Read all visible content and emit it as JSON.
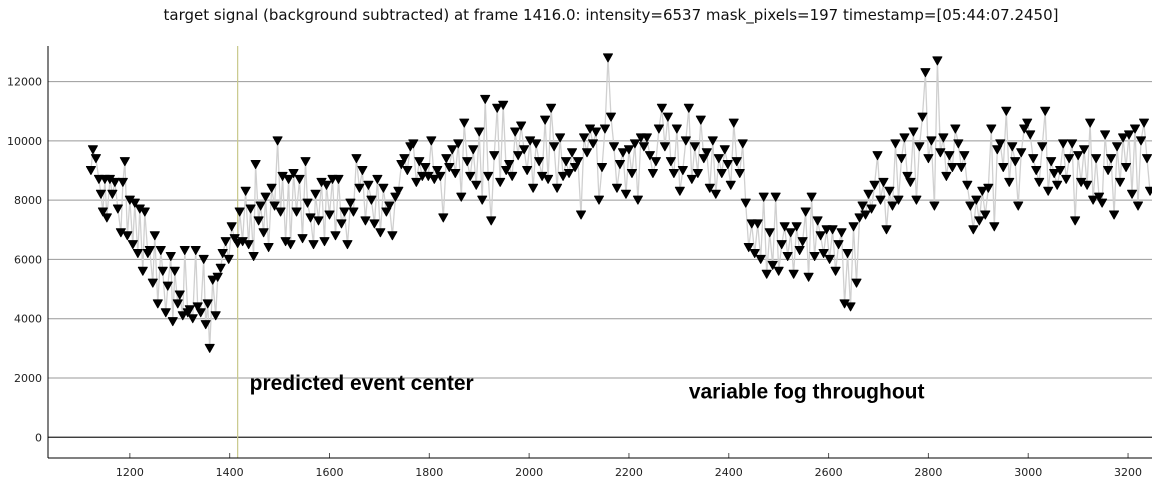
{
  "chart_data": {
    "type": "line",
    "title": "target signal (background subtracted) at frame 1416.0: intensity=6537 mask_pixels=197 timestamp=[05:44:07.2450]",
    "xlabel": "",
    "ylabel": "",
    "xlim": [
      1036,
      3248
    ],
    "ylim": [
      -700,
      13200
    ],
    "xticks": [
      1200,
      1400,
      1600,
      1800,
      2000,
      2200,
      2400,
      2600,
      2800,
      3000,
      3200
    ],
    "yticks": [
      0,
      2000,
      4000,
      6000,
      8000,
      10000,
      12000
    ],
    "grid": "horizontal",
    "marker": "down-triangle",
    "marker_color": "#000000",
    "line_color": "#d0d0d0",
    "event_line": {
      "x": 1416,
      "color": "#c8c88a"
    },
    "annotations": [
      {
        "text": "predicted event center",
        "x": 1440,
        "y": 1600
      },
      {
        "text": "variable fog throughout",
        "x": 2320,
        "y": 1300
      }
    ],
    "points": [
      [
        1122,
        9000
      ],
      [
        1126,
        9700
      ],
      [
        1132,
        9400
      ],
      [
        1138,
        8700
      ],
      [
        1142,
        8200
      ],
      [
        1146,
        7600
      ],
      [
        1150,
        8700
      ],
      [
        1154,
        7400
      ],
      [
        1160,
        8700
      ],
      [
        1165,
        8200
      ],
      [
        1170,
        8600
      ],
      [
        1176,
        7700
      ],
      [
        1182,
        6900
      ],
      [
        1186,
        8600
      ],
      [
        1190,
        9300
      ],
      [
        1195,
        6800
      ],
      [
        1200,
        8000
      ],
      [
        1206,
        6500
      ],
      [
        1210,
        7900
      ],
      [
        1216,
        6200
      ],
      [
        1220,
        7700
      ],
      [
        1226,
        5600
      ],
      [
        1230,
        7600
      ],
      [
        1236,
        6200
      ],
      [
        1240,
        6300
      ],
      [
        1246,
        5200
      ],
      [
        1250,
        6800
      ],
      [
        1256,
        4500
      ],
      [
        1262,
        6300
      ],
      [
        1266,
        5600
      ],
      [
        1272,
        4200
      ],
      [
        1276,
        5100
      ],
      [
        1282,
        6100
      ],
      [
        1286,
        3900
      ],
      [
        1290,
        5600
      ],
      [
        1296,
        4500
      ],
      [
        1300,
        4800
      ],
      [
        1306,
        4100
      ],
      [
        1310,
        6300
      ],
      [
        1316,
        4200
      ],
      [
        1320,
        4300
      ],
      [
        1326,
        4000
      ],
      [
        1332,
        6300
      ],
      [
        1336,
        4400
      ],
      [
        1342,
        4200
      ],
      [
        1348,
        6000
      ],
      [
        1352,
        3800
      ],
      [
        1356,
        4500
      ],
      [
        1360,
        3000
      ],
      [
        1366,
        5300
      ],
      [
        1372,
        4100
      ],
      [
        1376,
        5400
      ],
      [
        1382,
        5700
      ],
      [
        1386,
        6200
      ],
      [
        1392,
        6600
      ],
      [
        1398,
        6000
      ],
      [
        1404,
        7100
      ],
      [
        1410,
        6700
      ],
      [
        1416,
        6537
      ],
      [
        1420,
        7600
      ],
      [
        1426,
        6600
      ],
      [
        1432,
        8300
      ],
      [
        1438,
        6500
      ],
      [
        1442,
        7700
      ],
      [
        1448,
        6100
      ],
      [
        1452,
        9200
      ],
      [
        1458,
        7300
      ],
      [
        1462,
        7800
      ],
      [
        1468,
        6900
      ],
      [
        1472,
        8100
      ],
      [
        1478,
        6400
      ],
      [
        1484,
        8400
      ],
      [
        1490,
        7800
      ],
      [
        1496,
        10000
      ],
      [
        1502,
        7600
      ],
      [
        1506,
        8800
      ],
      [
        1512,
        6600
      ],
      [
        1518,
        8700
      ],
      [
        1522,
        6500
      ],
      [
        1528,
        8900
      ],
      [
        1534,
        7600
      ],
      [
        1540,
        8700
      ],
      [
        1546,
        6700
      ],
      [
        1552,
        9300
      ],
      [
        1556,
        7900
      ],
      [
        1562,
        7400
      ],
      [
        1568,
        6500
      ],
      [
        1572,
        8200
      ],
      [
        1578,
        7300
      ],
      [
        1584,
        8600
      ],
      [
        1590,
        6600
      ],
      [
        1594,
        8500
      ],
      [
        1600,
        7500
      ],
      [
        1606,
        8700
      ],
      [
        1612,
        6800
      ],
      [
        1618,
        8700
      ],
      [
        1624,
        7200
      ],
      [
        1630,
        7600
      ],
      [
        1636,
        6500
      ],
      [
        1642,
        7900
      ],
      [
        1648,
        7600
      ],
      [
        1654,
        9400
      ],
      [
        1660,
        8400
      ],
      [
        1666,
        9000
      ],
      [
        1672,
        7300
      ],
      [
        1678,
        8500
      ],
      [
        1684,
        8000
      ],
      [
        1690,
        7200
      ],
      [
        1696,
        8700
      ],
      [
        1702,
        6900
      ],
      [
        1708,
        8400
      ],
      [
        1714,
        7600
      ],
      [
        1720,
        7800
      ],
      [
        1726,
        6800
      ],
      [
        1732,
        8100
      ],
      [
        1738,
        8300
      ],
      [
        1744,
        9200
      ],
      [
        1750,
        9400
      ],
      [
        1756,
        9000
      ],
      [
        1762,
        9800
      ],
      [
        1768,
        9900
      ],
      [
        1774,
        8600
      ],
      [
        1780,
        9300
      ],
      [
        1786,
        8800
      ],
      [
        1792,
        9100
      ],
      [
        1798,
        8800
      ],
      [
        1804,
        10000
      ],
      [
        1810,
        8700
      ],
      [
        1816,
        9000
      ],
      [
        1822,
        8800
      ],
      [
        1828,
        7400
      ],
      [
        1834,
        9400
      ],
      [
        1840,
        9100
      ],
      [
        1846,
        9700
      ],
      [
        1852,
        8900
      ],
      [
        1858,
        9900
      ],
      [
        1864,
        8100
      ],
      [
        1870,
        10600
      ],
      [
        1876,
        9300
      ],
      [
        1882,
        8800
      ],
      [
        1888,
        9700
      ],
      [
        1894,
        8500
      ],
      [
        1900,
        10300
      ],
      [
        1906,
        8000
      ],
      [
        1912,
        11400
      ],
      [
        1918,
        8800
      ],
      [
        1924,
        7300
      ],
      [
        1930,
        9500
      ],
      [
        1936,
        11100
      ],
      [
        1942,
        8600
      ],
      [
        1948,
        11200
      ],
      [
        1954,
        9000
      ],
      [
        1960,
        9200
      ],
      [
        1966,
        8800
      ],
      [
        1972,
        10300
      ],
      [
        1978,
        9500
      ],
      [
        1984,
        10500
      ],
      [
        1990,
        9700
      ],
      [
        1996,
        9000
      ],
      [
        2002,
        10000
      ],
      [
        2008,
        8400
      ],
      [
        2014,
        9900
      ],
      [
        2020,
        9300
      ],
      [
        2026,
        8800
      ],
      [
        2032,
        10700
      ],
      [
        2038,
        8700
      ],
      [
        2044,
        11100
      ],
      [
        2050,
        9800
      ],
      [
        2056,
        8400
      ],
      [
        2062,
        10100
      ],
      [
        2068,
        8800
      ],
      [
        2074,
        9300
      ],
      [
        2080,
        8900
      ],
      [
        2086,
        9600
      ],
      [
        2092,
        9100
      ],
      [
        2098,
        9300
      ],
      [
        2104,
        7500
      ],
      [
        2110,
        10100
      ],
      [
        2116,
        9600
      ],
      [
        2122,
        10400
      ],
      [
        2128,
        9900
      ],
      [
        2134,
        10300
      ],
      [
        2140,
        8000
      ],
      [
        2146,
        9100
      ],
      [
        2152,
        10400
      ],
      [
        2158,
        12800
      ],
      [
        2164,
        10800
      ],
      [
        2170,
        9800
      ],
      [
        2176,
        8400
      ],
      [
        2182,
        9200
      ],
      [
        2188,
        9600
      ],
      [
        2194,
        8200
      ],
      [
        2200,
        9700
      ],
      [
        2206,
        8900
      ],
      [
        2212,
        9900
      ],
      [
        2218,
        8000
      ],
      [
        2224,
        10100
      ],
      [
        2230,
        9800
      ],
      [
        2236,
        10100
      ],
      [
        2242,
        9500
      ],
      [
        2248,
        8900
      ],
      [
        2254,
        9300
      ],
      [
        2260,
        10400
      ],
      [
        2266,
        11100
      ],
      [
        2272,
        9800
      ],
      [
        2278,
        10800
      ],
      [
        2284,
        9300
      ],
      [
        2290,
        8900
      ],
      [
        2296,
        10400
      ],
      [
        2302,
        8300
      ],
      [
        2308,
        9000
      ],
      [
        2314,
        10000
      ],
      [
        2320,
        11100
      ],
      [
        2326,
        8700
      ],
      [
        2332,
        9800
      ],
      [
        2338,
        8900
      ],
      [
        2344,
        10700
      ],
      [
        2350,
        9400
      ],
      [
        2356,
        9600
      ],
      [
        2362,
        8400
      ],
      [
        2368,
        10000
      ],
      [
        2374,
        8200
      ],
      [
        2380,
        9400
      ],
      [
        2386,
        8900
      ],
      [
        2392,
        9700
      ],
      [
        2398,
        9200
      ],
      [
        2404,
        8500
      ],
      [
        2410,
        10600
      ],
      [
        2416,
        9300
      ],
      [
        2422,
        8900
      ],
      [
        2428,
        9900
      ],
      [
        2434,
        7900
      ],
      [
        2440,
        6400
      ],
      [
        2446,
        7200
      ],
      [
        2452,
        6200
      ],
      [
        2458,
        7200
      ],
      [
        2464,
        6000
      ],
      [
        2470,
        8100
      ],
      [
        2476,
        5500
      ],
      [
        2482,
        6900
      ],
      [
        2488,
        5800
      ],
      [
        2494,
        8100
      ],
      [
        2500,
        5600
      ],
      [
        2506,
        6500
      ],
      [
        2512,
        7100
      ],
      [
        2518,
        6100
      ],
      [
        2524,
        6900
      ],
      [
        2530,
        5500
      ],
      [
        2536,
        7100
      ],
      [
        2542,
        6300
      ],
      [
        2548,
        6600
      ],
      [
        2554,
        7600
      ],
      [
        2560,
        5400
      ],
      [
        2566,
        8100
      ],
      [
        2572,
        6100
      ],
      [
        2578,
        7300
      ],
      [
        2584,
        6800
      ],
      [
        2590,
        6200
      ],
      [
        2596,
        7000
      ],
      [
        2602,
        6000
      ],
      [
        2608,
        7000
      ],
      [
        2614,
        5600
      ],
      [
        2620,
        6500
      ],
      [
        2626,
        6900
      ],
      [
        2632,
        4500
      ],
      [
        2638,
        6200
      ],
      [
        2644,
        4400
      ],
      [
        2650,
        7100
      ],
      [
        2656,
        5200
      ],
      [
        2662,
        7400
      ],
      [
        2668,
        7800
      ],
      [
        2674,
        7500
      ],
      [
        2680,
        8200
      ],
      [
        2686,
        7700
      ],
      [
        2692,
        8500
      ],
      [
        2698,
        9500
      ],
      [
        2704,
        8000
      ],
      [
        2710,
        8600
      ],
      [
        2716,
        7000
      ],
      [
        2722,
        8300
      ],
      [
        2728,
        7800
      ],
      [
        2734,
        9900
      ],
      [
        2740,
        8000
      ],
      [
        2746,
        9400
      ],
      [
        2752,
        10100
      ],
      [
        2758,
        8800
      ],
      [
        2764,
        8600
      ],
      [
        2770,
        10300
      ],
      [
        2776,
        8000
      ],
      [
        2782,
        9800
      ],
      [
        2788,
        10800
      ],
      [
        2794,
        12300
      ],
      [
        2800,
        9400
      ],
      [
        2806,
        10000
      ],
      [
        2812,
        7800
      ],
      [
        2818,
        12700
      ],
      [
        2824,
        9600
      ],
      [
        2830,
        10100
      ],
      [
        2836,
        8800
      ],
      [
        2842,
        9500
      ],
      [
        2848,
        9100
      ],
      [
        2854,
        10400
      ],
      [
        2860,
        9900
      ],
      [
        2866,
        9100
      ],
      [
        2872,
        9500
      ],
      [
        2878,
        8500
      ],
      [
        2884,
        7800
      ],
      [
        2890,
        7000
      ],
      [
        2896,
        8000
      ],
      [
        2902,
        7300
      ],
      [
        2908,
        8300
      ],
      [
        2914,
        7500
      ],
      [
        2920,
        8400
      ],
      [
        2926,
        10400
      ],
      [
        2932,
        7100
      ],
      [
        2938,
        9700
      ],
      [
        2944,
        9900
      ],
      [
        2950,
        9100
      ],
      [
        2956,
        11000
      ],
      [
        2962,
        8600
      ],
      [
        2968,
        9800
      ],
      [
        2974,
        9300
      ],
      [
        2980,
        7800
      ],
      [
        2986,
        9600
      ],
      [
        2992,
        10400
      ],
      [
        2998,
        10600
      ],
      [
        3004,
        10200
      ],
      [
        3010,
        9400
      ],
      [
        3016,
        9000
      ],
      [
        3022,
        8600
      ],
      [
        3028,
        9800
      ],
      [
        3034,
        11000
      ],
      [
        3040,
        8300
      ],
      [
        3046,
        9300
      ],
      [
        3052,
        8900
      ],
      [
        3058,
        8500
      ],
      [
        3064,
        9000
      ],
      [
        3070,
        9900
      ],
      [
        3076,
        8700
      ],
      [
        3082,
        9400
      ],
      [
        3088,
        9900
      ],
      [
        3094,
        7300
      ],
      [
        3100,
        9500
      ],
      [
        3106,
        8600
      ],
      [
        3112,
        9700
      ],
      [
        3118,
        8500
      ],
      [
        3124,
        10600
      ],
      [
        3130,
        8000
      ],
      [
        3136,
        9400
      ],
      [
        3142,
        8100
      ],
      [
        3148,
        7900
      ],
      [
        3154,
        10200
      ],
      [
        3160,
        9000
      ],
      [
        3166,
        9400
      ],
      [
        3172,
        7500
      ],
      [
        3178,
        9800
      ],
      [
        3184,
        8600
      ],
      [
        3190,
        10100
      ],
      [
        3196,
        9100
      ],
      [
        3202,
        10200
      ],
      [
        3208,
        8200
      ],
      [
        3214,
        10400
      ],
      [
        3220,
        7800
      ],
      [
        3226,
        10000
      ],
      [
        3232,
        10600
      ],
      [
        3238,
        9400
      ],
      [
        3244,
        8300
      ]
    ]
  }
}
